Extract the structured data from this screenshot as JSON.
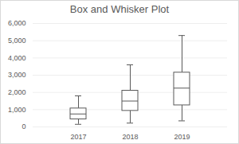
{
  "chart_data": {
    "type": "box",
    "title": "Box and Whisker Plot",
    "categories": [
      "2017",
      "2018",
      "2019"
    ],
    "min": [
      150,
      220,
      350
    ],
    "q1": [
      440,
      930,
      1250
    ],
    "median": [
      750,
      1500,
      2250
    ],
    "q3": [
      1070,
      2100,
      3150
    ],
    "max": [
      1800,
      3600,
      5300
    ],
    "color": "#595959",
    "ylim": [
      0,
      6000
    ],
    "yticks": [
      0,
      {
        "value": 1000,
        "label": "1,000"
      },
      {
        "value": 2000,
        "label": "2,000"
      },
      {
        "value": 3000,
        "label": "3,000"
      },
      {
        "value": 4000,
        "label": "4,000"
      },
      {
        "value": 5000,
        "label": "5,000"
      },
      {
        "value": 6000,
        "label": "6,000"
      }
    ],
    "grid": true
  }
}
